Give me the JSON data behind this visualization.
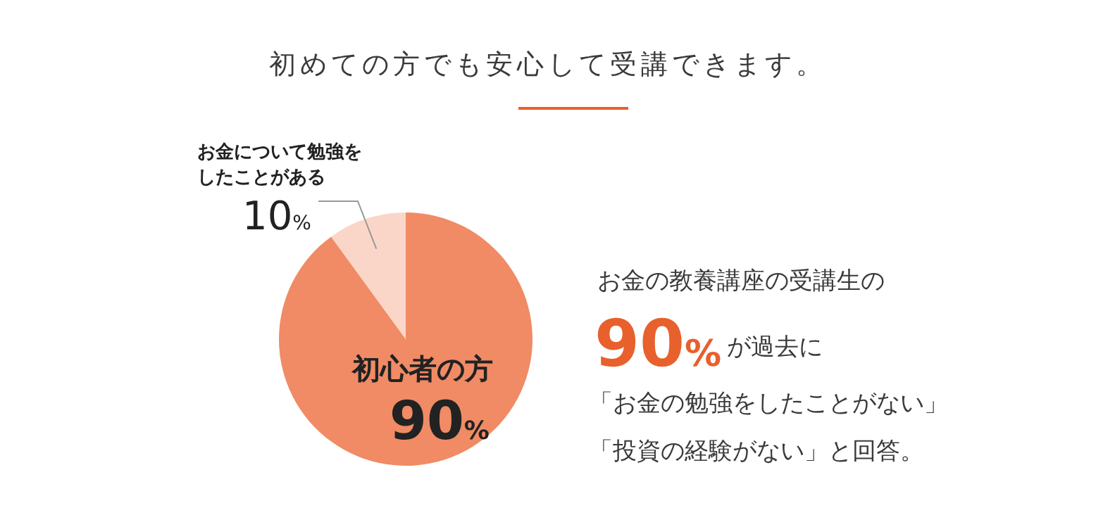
{
  "chart_data": {
    "type": "pie",
    "title": "初めての方でも安心して受講できます。",
    "categories": [
      "初心者の方",
      "お金について勉強をしたことがある"
    ],
    "values": [
      90,
      10
    ],
    "colors": [
      "#f08b65",
      "#fad6c9"
    ],
    "value_labels": [
      "90%",
      "10%"
    ],
    "annotations": [
      "お金の教養講座の受講生の",
      "90%",
      "が過去に",
      "「お金の勉強をしたことがない」",
      "「投資の経験がない」と回答。"
    ]
  }
}
